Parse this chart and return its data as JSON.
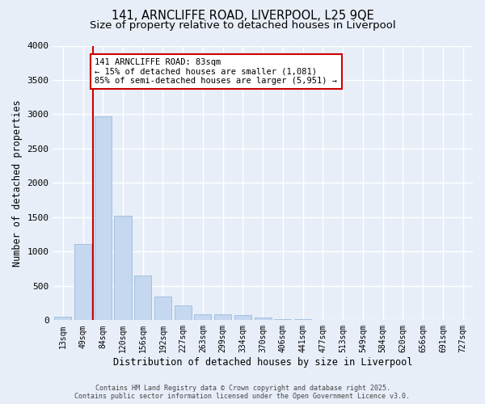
{
  "title1": "141, ARNCLIFFE ROAD, LIVERPOOL, L25 9QE",
  "title2": "Size of property relative to detached houses in Liverpool",
  "xlabel": "Distribution of detached houses by size in Liverpool",
  "ylabel": "Number of detached properties",
  "categories": [
    "13sqm",
    "49sqm",
    "84sqm",
    "120sqm",
    "156sqm",
    "192sqm",
    "227sqm",
    "263sqm",
    "299sqm",
    "334sqm",
    "370sqm",
    "406sqm",
    "441sqm",
    "477sqm",
    "513sqm",
    "549sqm",
    "584sqm",
    "620sqm",
    "656sqm",
    "691sqm",
    "727sqm"
  ],
  "values": [
    55,
    1110,
    2970,
    1520,
    650,
    340,
    215,
    90,
    90,
    70,
    40,
    20,
    10,
    5,
    0,
    0,
    0,
    0,
    0,
    0,
    0
  ],
  "bar_color": "#c5d8f0",
  "bar_edge_color": "#8ab4d8",
  "annotation_text": "141 ARNCLIFFE ROAD: 83sqm\n← 15% of detached houses are smaller (1,081)\n85% of semi-detached houses are larger (5,951) →",
  "annotation_box_color": "#ffffff",
  "annotation_box_edge_color": "#cc0000",
  "vline_color": "#cc0000",
  "background_color": "#e8eef8",
  "grid_color": "#ffffff",
  "footer_line1": "Contains HM Land Registry data © Crown copyright and database right 2025.",
  "footer_line2": "Contains public sector information licensed under the Open Government Licence v3.0.",
  "ylim": [
    0,
    4000
  ],
  "yticks": [
    0,
    500,
    1000,
    1500,
    2000,
    2500,
    3000,
    3500,
    4000
  ],
  "title_fontsize": 10.5,
  "subtitle_fontsize": 9.5,
  "tick_fontsize": 7,
  "ylabel_fontsize": 8.5,
  "xlabel_fontsize": 8.5,
  "footer_fontsize": 6,
  "annot_fontsize": 7.5
}
